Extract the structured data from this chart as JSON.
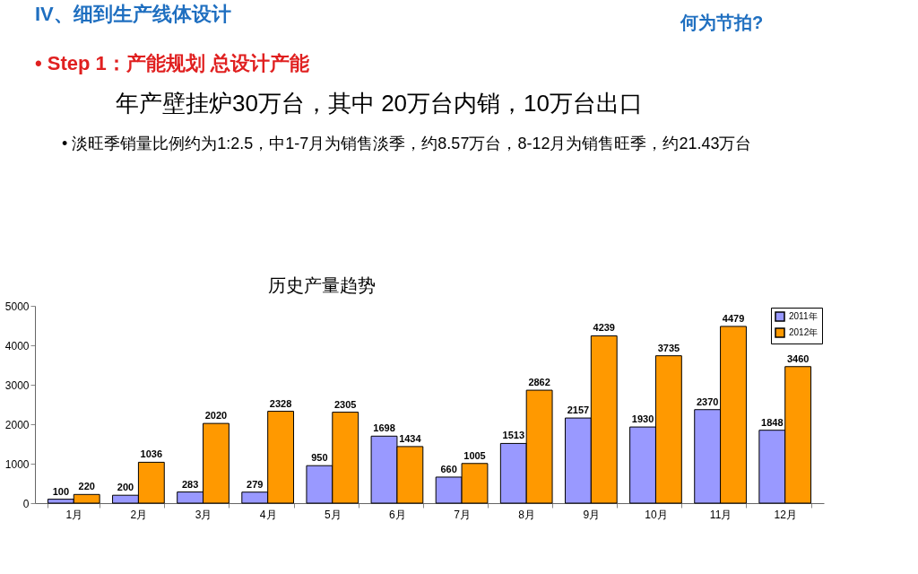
{
  "chart_data": {
    "type": "bar",
    "title": "历史产量趋势",
    "categories": [
      "1月",
      "2月",
      "3月",
      "4月",
      "5月",
      "6月",
      "7月",
      "8月",
      "9月",
      "10月",
      "11月",
      "12月"
    ],
    "series": [
      {
        "name": "2011年",
        "color": "#9999ff",
        "values": [
          100,
          200,
          283,
          279,
          950,
          1698,
          660,
          1513,
          2157,
          1930,
          2370,
          1848
        ]
      },
      {
        "name": "2012年",
        "color": "#ff9900",
        "values": [
          220,
          1036,
          2020,
          2328,
          2305,
          1434,
          1005,
          2862,
          4239,
          3735,
          4479,
          3460
        ]
      }
    ],
    "ylim": [
      0,
      5000
    ],
    "yticks": [
      0,
      1000,
      2000,
      3000,
      4000,
      5000
    ],
    "grid": false,
    "legend": "top right",
    "data_labels": true,
    "annotations": [
      "IV、细到生产线体设计",
      "何为节拍?",
      "• Step 1：产能规划   总设计产能",
      "年产壁挂炉30万台，其中 20万台内销，10万台出口",
      "• 淡旺季销量比例约为1:2.5，中1-7月为销售淡季，约8.57万台，8-12月为销售旺季，约21.43万台"
    ]
  }
}
